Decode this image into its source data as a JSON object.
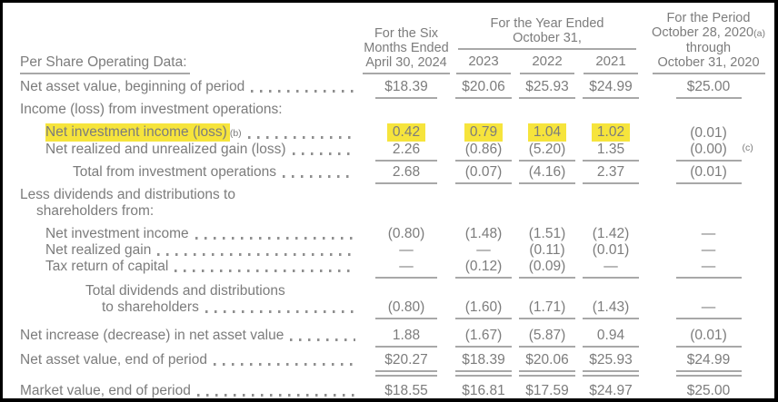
{
  "colors": {
    "text": "#7c7c7c",
    "rule": "#a8a8a8",
    "dots": "#8f8f8f",
    "highlight": "#f6e43c"
  },
  "header": {
    "row_label_header": "Per Share Operating Data:",
    "col1_lines": [
      "For the Six",
      "Months Ended",
      "April 30, 2024"
    ],
    "year_group": {
      "title_line1": "For the Year Ended",
      "title_line2": "October 31,",
      "years": [
        "2023",
        "2022",
        "2021"
      ]
    },
    "col5": {
      "line1": "For the Period",
      "line2": "October 28, 2020",
      "line2_sup": "(a)",
      "line3": "through",
      "line4": "October 31, 2020"
    }
  },
  "rows": [
    {
      "label": "Net asset value, beginning of period",
      "indent": 0,
      "dots": true,
      "values": [
        "$18.39",
        "$20.06",
        "$25.93",
        "$24.99",
        "$25.00"
      ],
      "underline": "single"
    },
    {
      "label": "Income (loss) from investment operations:",
      "indent": 0,
      "dots": false,
      "values": []
    },
    {
      "label": "Net investment income (loss)",
      "sup": "(b)",
      "indent": 1,
      "dots": true,
      "values": [
        "0.42",
        "0.79",
        "1.04",
        "1.02",
        "(0.01)"
      ],
      "underline": "none",
      "highlight_label": true,
      "highlight_values": [
        0,
        1,
        2,
        3
      ]
    },
    {
      "label": "Net realized and unrealized gain (loss)",
      "indent": 1,
      "dots": true,
      "values": [
        "2.26",
        "(0.86)",
        "(5.20)",
        "1.35",
        "(0.00)"
      ],
      "value_note_col5": "(c)",
      "underline": "single"
    },
    {
      "label": "Total from investment operations",
      "indent": 2,
      "dots": true,
      "values": [
        "2.68",
        "(0.07)",
        "(4.16)",
        "2.37",
        "(0.01)"
      ],
      "underline": "single"
    },
    {
      "label": "Less dividends and distributions to",
      "label2": "shareholders from:",
      "indent": 0,
      "dots": false,
      "values": []
    },
    {
      "label": "Net investment income",
      "indent": 1,
      "dots": true,
      "values": [
        "(0.80)",
        "(1.48)",
        "(1.51)",
        "(1.42)",
        "—"
      ],
      "underline": "none"
    },
    {
      "label": "Net realized gain",
      "indent": 1,
      "dots": true,
      "values": [
        "—",
        "—",
        "(0.11)",
        "(0.01)",
        "—"
      ],
      "underline": "none"
    },
    {
      "label": "Tax return of capital",
      "indent": 1,
      "dots": true,
      "values": [
        "—",
        "(0.12)",
        "(0.09)",
        "—",
        "—"
      ],
      "underline": "single"
    },
    {
      "label": "Total dividends and distributions",
      "label2": "to shareholders",
      "indent": 3,
      "dots": true,
      "dots_on_line2": true,
      "values": [
        "(0.80)",
        "(1.60)",
        "(1.71)",
        "(1.43)",
        "—"
      ],
      "underline": "single"
    },
    {
      "label": "Net increase (decrease) in net asset value",
      "indent": 0,
      "dots": true,
      "values": [
        "1.88",
        "(1.67)",
        "(5.87)",
        "0.94",
        "(0.01)"
      ],
      "underline": "single"
    },
    {
      "label": "Net asset value, end of period",
      "indent": 0,
      "dots": true,
      "values": [
        "$20.27",
        "$18.39",
        "$20.06",
        "$25.93",
        "$24.99"
      ],
      "underline": "double"
    },
    {
      "label": "Market value, end of period",
      "indent": 0,
      "dots": true,
      "values": [
        "$18.55",
        "$16.81",
        "$17.59",
        "$24.97",
        "$25.00"
      ],
      "underline": "none"
    }
  ]
}
